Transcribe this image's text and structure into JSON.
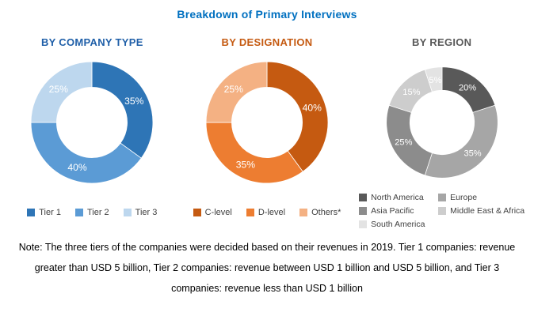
{
  "title": "Breakdown of Primary Interviews",
  "title_color": "#0070C0",
  "chart_data": [
    {
      "type": "pie",
      "variant": "donut",
      "title": "BY COMPANY TYPE",
      "title_color": "#1F5FA8",
      "categories": [
        "Tier 1",
        "Tier 2",
        "Tier 3"
      ],
      "values": [
        35,
        40,
        25
      ],
      "unit": "%",
      "colors": [
        "#2E75B6",
        "#5B9BD5",
        "#BDD7EE"
      ],
      "data_labels": [
        "35%",
        "40%",
        "25%"
      ],
      "legend_position": "bottom",
      "legend_columns": 3,
      "start_angle_deg": 0,
      "direction": "clockwise"
    },
    {
      "type": "pie",
      "variant": "donut",
      "title": "BY DESIGNATION",
      "title_color": "#C55A11",
      "categories": [
        "C-level",
        "D-level",
        "Others*"
      ],
      "values": [
        40,
        35,
        25
      ],
      "unit": "%",
      "colors": [
        "#C55A11",
        "#ED7D31",
        "#F4B183"
      ],
      "data_labels": [
        "40%",
        "35%",
        "25%"
      ],
      "legend_position": "bottom",
      "legend_columns": 3,
      "start_angle_deg": 0,
      "direction": "clockwise"
    },
    {
      "type": "pie",
      "variant": "donut",
      "title": "BY REGION",
      "title_color": "#595959",
      "categories": [
        "North America",
        "Europe",
        "Asia Pacific",
        "Middle East & Africa",
        "South America"
      ],
      "values": [
        20,
        35,
        25,
        15,
        5
      ],
      "unit": "%",
      "colors": [
        "#595959",
        "#A6A6A6",
        "#8C8C8C",
        "#CDCDCD",
        "#E3E3E3"
      ],
      "data_labels": [
        "20%",
        "35%",
        "25%",
        "15%",
        "5%"
      ],
      "legend_position": "bottom",
      "legend_columns": 2,
      "start_angle_deg": 0,
      "direction": "clockwise"
    }
  ],
  "note": {
    "lines": [
      "Note: The three tiers of the companies were decided based on their revenues in 2019. Tier 1 companies: revenue",
      "greater than USD 5 billion, Tier 2 companies: revenue between USD 1 billion and USD 5 billion, and Tier 3",
      "companies: revenue less than USD 1 billion"
    ]
  }
}
